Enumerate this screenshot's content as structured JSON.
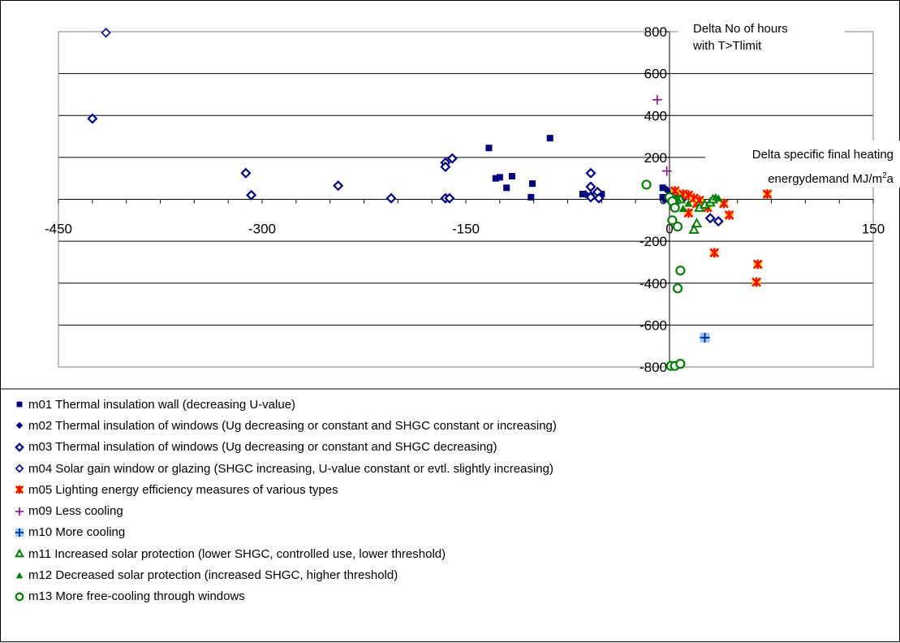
{
  "chart_data": {
    "type": "scatter",
    "xlim": [
      -450,
      150
    ],
    "ylim": [
      -800,
      800
    ],
    "x_ticks": [
      "-450",
      "-300",
      "-150",
      "0",
      "150"
    ],
    "y_ticks": [
      "-800",
      "-600",
      "-400",
      "-200",
      "0",
      "200",
      "400",
      "600",
      "800"
    ],
    "x_tick_values": [
      -450,
      -300,
      -150,
      0,
      150
    ],
    "y_tick_values": [
      -800,
      -600,
      -400,
      -200,
      0,
      200,
      400,
      600,
      800
    ],
    "ylabel": "Delta No of hours with T>Tlimit",
    "xlabel": "Delta specific final heating energydemand MJ/m2a",
    "ylabel_lines": [
      "Delta No of hours",
      "with T>Tlimit"
    ],
    "xlabel_line1": "Delta specific final heating",
    "xlabel_line2_pre": "energydemand MJ/m",
    "xlabel_sup": "2",
    "xlabel_post": "a",
    "grid": true,
    "legend_position": "bottom",
    "series": [
      {
        "name": "m01 Thermal insulation wall (decreasing U-value)",
        "marker": "filled-square",
        "color": "#000080",
        "points": [
          [
            -133,
            245
          ],
          [
            -128,
            100
          ],
          [
            -125,
            105
          ],
          [
            -120,
            55
          ],
          [
            -116,
            110
          ],
          [
            -101,
            75
          ],
          [
            -102,
            10
          ],
          [
            -88,
            292
          ],
          [
            -64,
            25
          ],
          [
            -58,
            15
          ],
          [
            -50,
            25
          ],
          [
            -5,
            55
          ],
          [
            -5,
            10
          ],
          [
            0,
            20
          ],
          [
            -3,
            0
          ]
        ]
      },
      {
        "name": "m02 Thermal insulation of windows (Ug decreasing or constant and SHGC constant or increasing)",
        "marker": "filled-diamond",
        "color": "#000080",
        "points": [
          [
            -62,
            25
          ],
          [
            -58,
            20
          ],
          [
            -2,
            45
          ],
          [
            2,
            30
          ],
          [
            6,
            15
          ],
          [
            0,
            0
          ],
          [
            10,
            0
          ]
        ]
      },
      {
        "name": "m03 Thermal insulation of windows (Ug decreasing or constant and SHGC decreasing)",
        "marker": "open-diamond-bold",
        "color": "#000080",
        "points": [
          [
            -425,
            385
          ],
          [
            -312,
            125
          ],
          [
            -308,
            20
          ],
          [
            -244,
            65
          ],
          [
            -205,
            5
          ],
          [
            -165,
            175
          ],
          [
            -165,
            155
          ],
          [
            -160,
            195
          ],
          [
            -165,
            5
          ],
          [
            -162,
            5
          ],
          [
            -58,
            125
          ],
          [
            -58,
            60
          ],
          [
            -53,
            35
          ],
          [
            -58,
            10
          ],
          [
            -52,
            5
          ],
          [
            30,
            -90
          ],
          [
            36,
            -105
          ]
        ]
      },
      {
        "name": "m04 Solar gain window or glazing (SHGC increasing, U-value constant or evtl. slightly increasing)",
        "marker": "open-diamond",
        "color": "#000080",
        "points": [
          [
            -415,
            795
          ]
        ]
      },
      {
        "name": "m05 Lighting energy efficiency measures of various types",
        "marker": "asterisk",
        "color": "#ff0000",
        "points": [
          [
            4,
            40
          ],
          [
            10,
            25
          ],
          [
            14,
            20
          ],
          [
            18,
            5
          ],
          [
            20,
            -20
          ],
          [
            22,
            -5
          ],
          [
            14,
            -65
          ],
          [
            28,
            -40
          ],
          [
            40,
            -20
          ],
          [
            44,
            -75
          ],
          [
            33,
            -255
          ],
          [
            72,
            25
          ],
          [
            65,
            -310
          ],
          [
            64,
            -395
          ]
        ]
      },
      {
        "name": "m09 Less cooling",
        "marker": "plus",
        "color": "#800080",
        "points": [
          [
            -9,
            475
          ],
          [
            -2,
            135
          ]
        ]
      },
      {
        "name": "m10 More cooling",
        "marker": "boxed-plus",
        "color": "#003399",
        "points": [
          [
            26,
            -660
          ]
        ]
      },
      {
        "name": "m11 Increased solar protection (lower SHGC, controlled use, lower threshold)",
        "marker": "open-triangle",
        "color": "#008000",
        "points": [
          [
            4,
            -5
          ],
          [
            8,
            0
          ],
          [
            20,
            -115
          ],
          [
            18,
            -145
          ],
          [
            22,
            -40
          ],
          [
            26,
            -25
          ],
          [
            30,
            -15
          ],
          [
            32,
            0
          ]
        ]
      },
      {
        "name": "m12 Decreased solar protection (increased SHGC, higher threshold)",
        "marker": "filled-triangle",
        "color": "#008000",
        "points": [
          [
            6,
            5
          ],
          [
            14,
            -20
          ],
          [
            34,
            10
          ],
          [
            36,
            5
          ],
          [
            10,
            -45
          ]
        ]
      },
      {
        "name": "m13 More free-cooling through windows",
        "marker": "open-circle",
        "color": "#008000",
        "points": [
          [
            -17,
            70
          ],
          [
            0,
            10
          ],
          [
            2,
            -10
          ],
          [
            4,
            -40
          ],
          [
            2,
            -100
          ],
          [
            6,
            -130
          ],
          [
            8,
            -340
          ],
          [
            6,
            -425
          ],
          [
            1,
            -795
          ],
          [
            4,
            -795
          ],
          [
            8,
            -785
          ]
        ]
      }
    ]
  }
}
